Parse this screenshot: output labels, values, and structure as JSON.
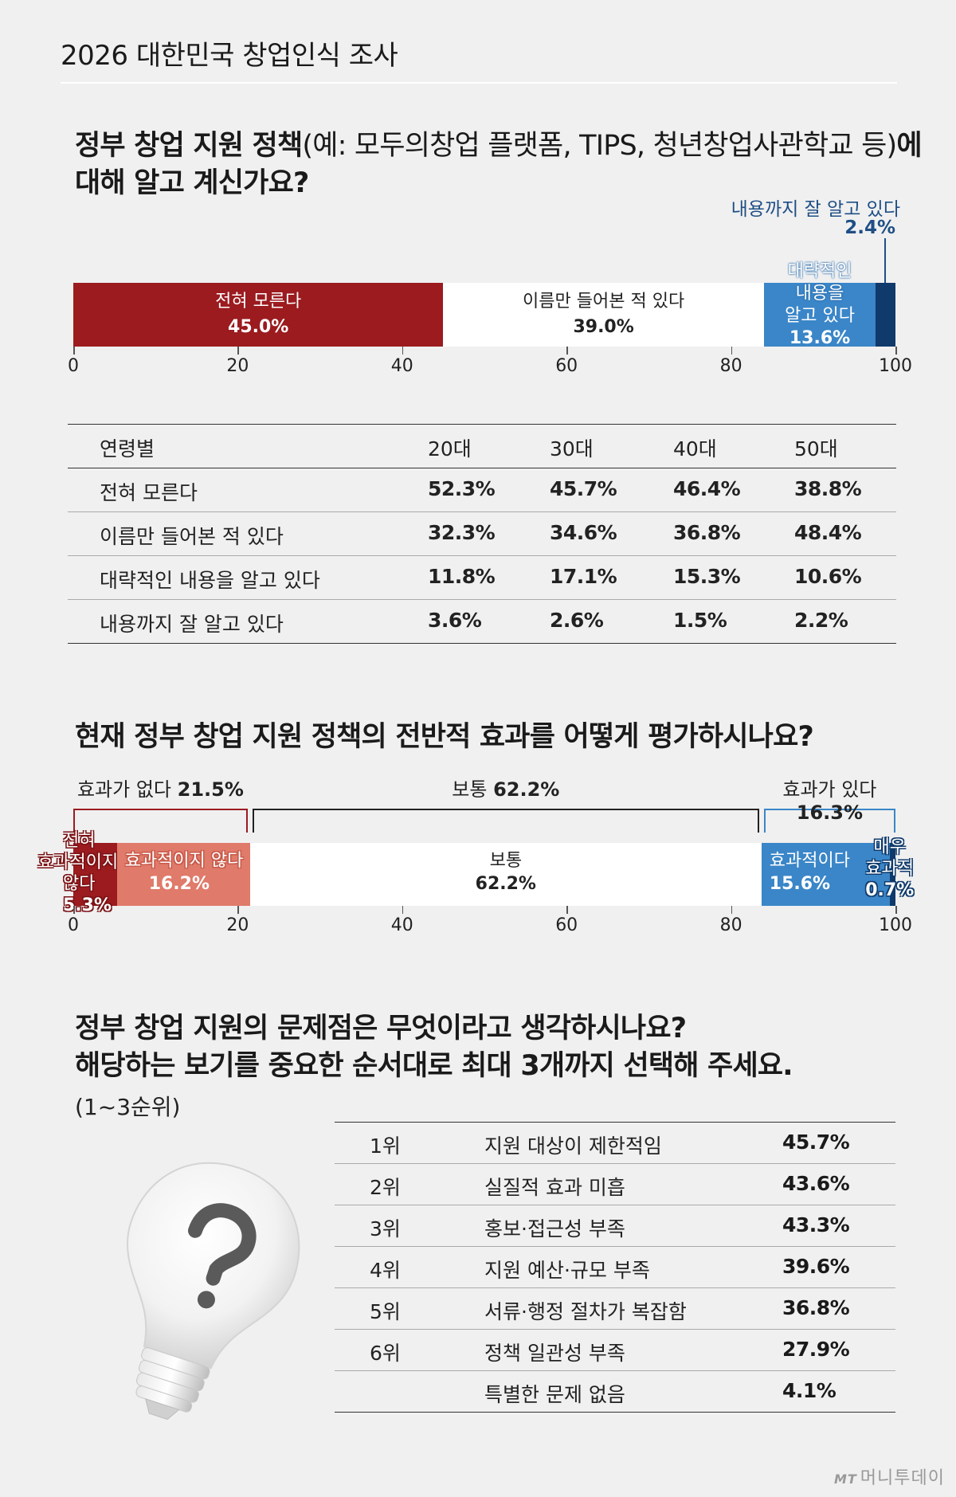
{
  "header": {
    "title": "2026 대한민국 창업인식 조사"
  },
  "q1": {
    "title_bold_1": "정부 창업 지원 정책",
    "title_light": "(예: 모두의창업 플랫폼, TIPS, 청년창업사관학교 등)",
    "title_bold_2": "에",
    "title_line2": "대해 알고 계신가요?",
    "callout_label": "내용까지 잘 알고 있다",
    "callout_value": "2.4%",
    "chart_data": {
      "type": "bar",
      "orientation": "horizontal-stacked",
      "xlim": [
        0,
        100
      ],
      "ticks": [
        "0",
        "20",
        "40",
        "60",
        "80",
        "100"
      ],
      "segments": [
        {
          "name": "전혀 모른다",
          "value": 45.0,
          "label": "45.0%",
          "color": "#9b1b1f",
          "text_color": "#ffffff"
        },
        {
          "name": "이름만 들어본 적 있다",
          "value": 39.0,
          "label": "39.0%",
          "color": "#ffffff",
          "text_color": "#222222"
        },
        {
          "name": "대략적인 내용을 알고 있다",
          "name_lines": [
            "대략적인",
            "내용을",
            "알고 있다"
          ],
          "value": 13.6,
          "label": "13.6%",
          "color": "#3a86c8",
          "text_color": "#ffffff"
        },
        {
          "name": "내용까지 잘 알고 있다",
          "value": 2.4,
          "label": "2.4%",
          "color": "#0f3a6b",
          "text_color": "#ffffff"
        }
      ]
    },
    "age_table": {
      "headers": [
        "연령별",
        "20대",
        "30대",
        "40대",
        "50대"
      ],
      "rows": [
        {
          "label": "전혀 모른다",
          "values": [
            "52.3%",
            "45.7%",
            "46.4%",
            "38.8%"
          ]
        },
        {
          "label": "이름만 들어본 적 있다",
          "values": [
            "32.3%",
            "34.6%",
            "36.8%",
            "48.4%"
          ]
        },
        {
          "label": "대략적인 내용을 알고 있다",
          "values": [
            "11.8%",
            "17.1%",
            "15.3%",
            "10.6%"
          ]
        },
        {
          "label": "내용까지 잘 알고 있다",
          "values": [
            "3.6%",
            "2.6%",
            "1.5%",
            "2.2%"
          ]
        }
      ]
    }
  },
  "q2": {
    "title": "현재 정부 창업 지원 정책의 전반적 효과를 어떻게 평가하시나요?",
    "groups": [
      {
        "label": "효과가 없다",
        "value": "21.5%",
        "color": "#9b1b1f"
      },
      {
        "label": "보통",
        "value": "62.2%",
        "color": "#222222"
      },
      {
        "label": "효과가 있다",
        "value": "16.3%",
        "color": "#3a86c8"
      }
    ],
    "chart_data": {
      "type": "bar",
      "orientation": "horizontal-stacked",
      "xlim": [
        0,
        100
      ],
      "ticks": [
        "0",
        "20",
        "40",
        "60",
        "80",
        "100"
      ],
      "segments": [
        {
          "name": "전혀 효과적이지 않다",
          "name_lines": [
            "전혀",
            "효과적이지",
            "않다"
          ],
          "value": 5.3,
          "label": "5.3%",
          "color": "#9b1b1f"
        },
        {
          "name": "효과적이지 않다",
          "value": 16.2,
          "label": "16.2%",
          "color": "#e07a6a"
        },
        {
          "name": "보통",
          "value": 62.2,
          "label": "62.2%",
          "color": "#ffffff"
        },
        {
          "name": "효과적이다",
          "value": 15.6,
          "label": "15.6%",
          "color": "#3a86c8"
        },
        {
          "name": "매우 효과적",
          "name_lines": [
            "매우",
            "효과적"
          ],
          "value": 0.7,
          "label": "0.7%",
          "color": "#0f3a6b"
        }
      ]
    }
  },
  "q3": {
    "title_line1": "정부 창업 지원의 문제점은 무엇이라고 생각하시나요?",
    "title_line2": "해당하는 보기를 중요한 순서대로 최대 3개까지 선택해 주세요.",
    "subtitle": "(1~3순위)",
    "chart_data": {
      "type": "table",
      "rows": [
        {
          "rank": "1위",
          "item": "지원 대상이 제한적임",
          "value": "45.7%"
        },
        {
          "rank": "2위",
          "item": "실질적 효과 미흡",
          "value": "43.6%"
        },
        {
          "rank": "3위",
          "item": "홍보·접근성 부족",
          "value": "43.3%"
        },
        {
          "rank": "4위",
          "item": "지원 예산·규모 부족",
          "value": "39.6%"
        },
        {
          "rank": "5위",
          "item": "서류·행정 절차가 복잡함",
          "value": "36.8%"
        },
        {
          "rank": "6위",
          "item": "정책 일관성 부족",
          "value": "27.9%"
        },
        {
          "rank": "",
          "item": "특별한 문제 없음",
          "value": "4.1%"
        }
      ]
    }
  },
  "footer": {
    "mark": "MT",
    "brand": "머니투데이"
  }
}
